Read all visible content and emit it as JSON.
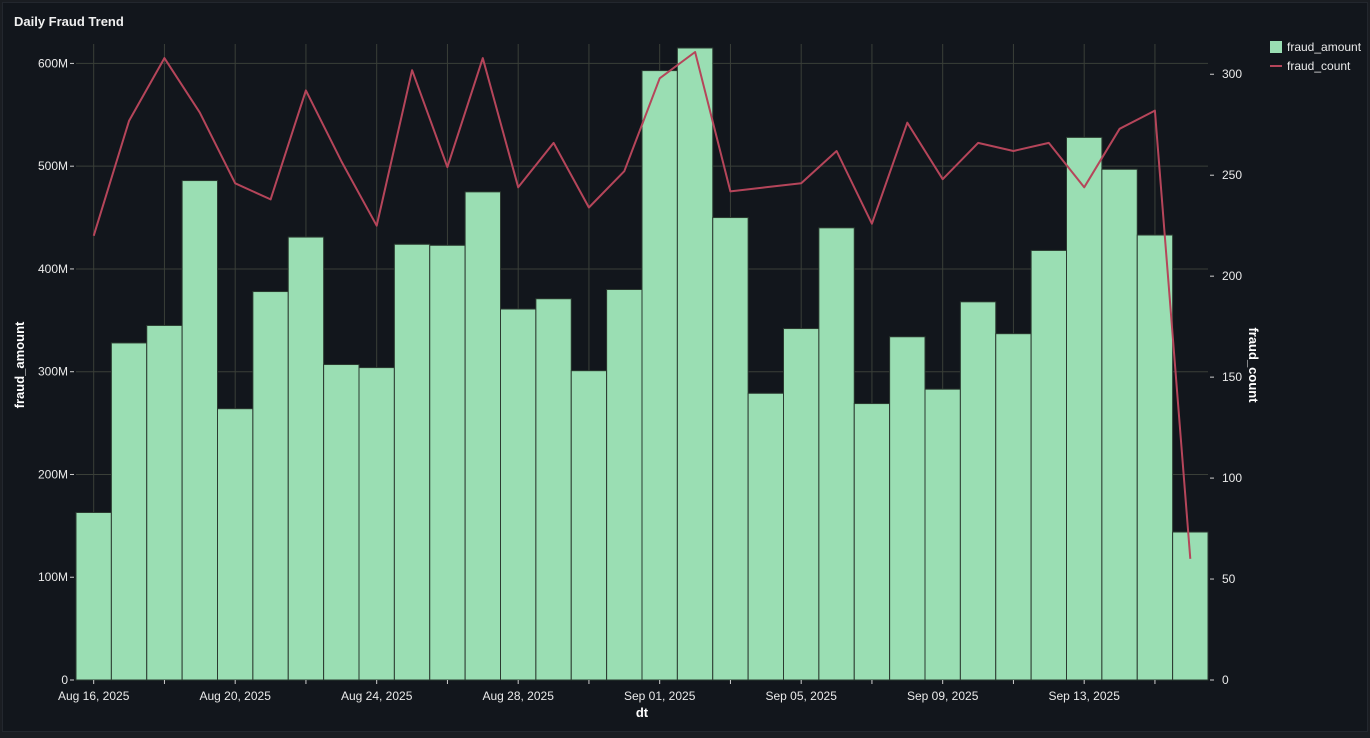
{
  "panel": {
    "title": "Daily Fraud Trend"
  },
  "colors": {
    "bar": "#9adeb3",
    "line": "#b5455a",
    "background": "#12161c",
    "grid": "#3a3f38"
  },
  "chart_data": {
    "type": "bar",
    "title": "Daily Fraud Trend",
    "xlabel": "dt",
    "ylabel": "fraud_amount",
    "y2label": "fraud_count",
    "grid": true,
    "legend": "top-right",
    "categories": [
      "2025-08-16",
      "2025-08-17",
      "2025-08-18",
      "2025-08-19",
      "2025-08-20",
      "2025-08-21",
      "2025-08-22",
      "2025-08-23",
      "2025-08-24",
      "2025-08-25",
      "2025-08-26",
      "2025-08-27",
      "2025-08-28",
      "2025-08-29",
      "2025-08-30",
      "2025-08-31",
      "2025-09-01",
      "2025-09-02",
      "2025-09-03",
      "2025-09-04",
      "2025-09-05",
      "2025-09-06",
      "2025-09-07",
      "2025-09-08",
      "2025-09-09",
      "2025-09-10",
      "2025-09-11",
      "2025-09-12",
      "2025-09-13",
      "2025-09-14",
      "2025-09-15",
      "2025-09-16"
    ],
    "x_tick_labels": [
      {
        "date": "2025-08-16",
        "label": "Aug 16, 2025"
      },
      {
        "date": "2025-08-20",
        "label": "Aug 20, 2025"
      },
      {
        "date": "2025-08-24",
        "label": "Aug 24, 2025"
      },
      {
        "date": "2025-08-28",
        "label": "Aug 28, 2025"
      },
      {
        "date": "2025-09-01",
        "label": "Sep 01, 2025"
      },
      {
        "date": "2025-09-05",
        "label": "Sep 05, 2025"
      },
      {
        "date": "2025-09-09",
        "label": "Sep 09, 2025"
      },
      {
        "date": "2025-09-13",
        "label": "Sep 13, 2025"
      }
    ],
    "y_ticks": [
      {
        "value": 0,
        "label": "0"
      },
      {
        "value": 100000000,
        "label": "100M"
      },
      {
        "value": 200000000,
        "label": "200M"
      },
      {
        "value": 300000000,
        "label": "300M"
      },
      {
        "value": 400000000,
        "label": "400M"
      },
      {
        "value": 500000000,
        "label": "500M"
      },
      {
        "value": 600000000,
        "label": "600M"
      }
    ],
    "y2_ticks": [
      {
        "value": 0,
        "label": "0"
      },
      {
        "value": 50,
        "label": "50"
      },
      {
        "value": 100,
        "label": "100"
      },
      {
        "value": 150,
        "label": "150"
      },
      {
        "value": 200,
        "label": "200"
      },
      {
        "value": 250,
        "label": "250"
      },
      {
        "value": 300,
        "label": "300"
      }
    ],
    "ylim": [
      0,
      615000000
    ],
    "y2lim": [
      0,
      313
    ],
    "series": [
      {
        "name": "fraud_amount",
        "type": "bar",
        "axis": "left",
        "values": [
          163000000,
          328000000,
          345000000,
          486000000,
          264000000,
          378000000,
          431000000,
          307000000,
          304000000,
          424000000,
          423000000,
          475000000,
          361000000,
          371000000,
          301000000,
          380000000,
          593000000,
          615000000,
          450000000,
          279000000,
          342000000,
          440000000,
          269000000,
          334000000,
          283000000,
          368000000,
          337000000,
          418000000,
          528000000,
          497000000,
          433000000,
          144000000
        ]
      },
      {
        "name": "fraud_count",
        "type": "line",
        "axis": "right",
        "values": [
          220,
          277,
          308,
          281,
          246,
          238,
          292,
          257,
          225,
          302,
          254,
          308,
          244,
          266,
          234,
          252,
          298,
          311,
          242,
          244,
          246,
          262,
          226,
          276,
          248,
          266,
          262,
          266,
          244,
          273,
          282,
          60
        ]
      }
    ]
  }
}
